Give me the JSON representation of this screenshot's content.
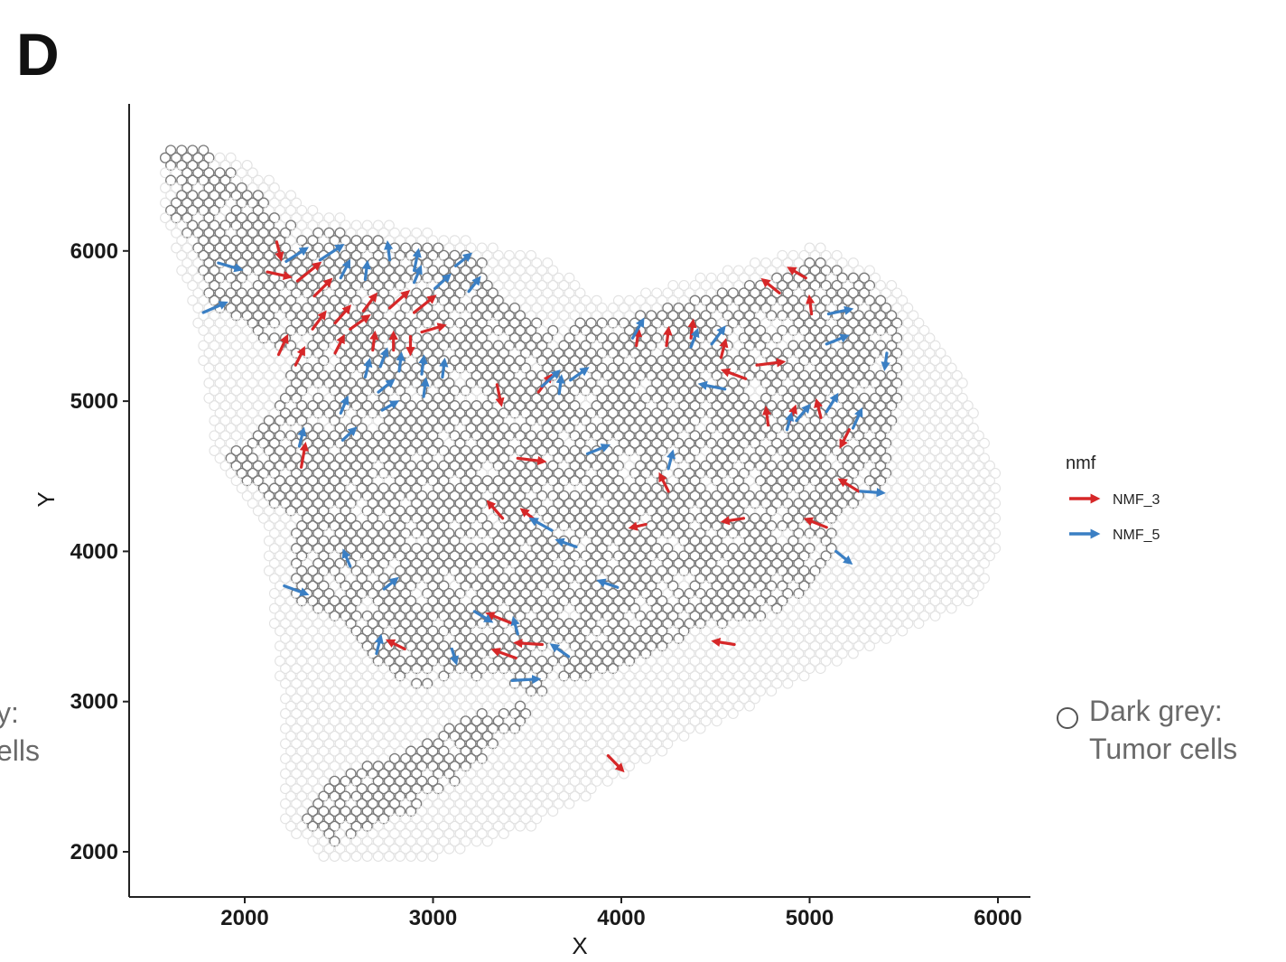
{
  "panel": {
    "letter": "D"
  },
  "chart_data": {
    "type": "scatter",
    "xlabel": "X",
    "ylabel": "Y",
    "xlim": [
      1350,
      6150
    ],
    "ylim": [
      1700,
      6980
    ],
    "x_ticks": [
      2000,
      3000,
      4000,
      5000,
      6000
    ],
    "y_ticks": [
      2000,
      3000,
      4000,
      5000,
      6000
    ],
    "grid": false,
    "legend": {
      "title": "nmf",
      "placement": "right",
      "entries": [
        {
          "name": "NMF_3",
          "color": "#d62728"
        },
        {
          "name": "NMF_5",
          "color": "#3a7fc4"
        }
      ]
    },
    "spot_colors": {
      "dark": "#7a7a7a",
      "light": "#e2e2e2"
    },
    "series": [
      {
        "name": "NMF_3",
        "color": "#d62728",
        "arrows": [
          [
            2170,
            6060,
            2190,
            5960
          ],
          [
            2120,
            5860,
            2230,
            5830
          ],
          [
            2280,
            5800,
            2390,
            5910
          ],
          [
            2370,
            5700,
            2450,
            5800
          ],
          [
            2360,
            5480,
            2420,
            5580
          ],
          [
            2480,
            5520,
            2550,
            5620
          ],
          [
            2560,
            5480,
            2650,
            5560
          ],
          [
            2630,
            5600,
            2690,
            5700
          ],
          [
            2770,
            5620,
            2860,
            5720
          ],
          [
            2900,
            5590,
            3000,
            5690
          ],
          [
            2940,
            5460,
            3050,
            5500
          ],
          [
            2790,
            5340,
            2790,
            5440
          ],
          [
            2880,
            5430,
            2880,
            5330
          ],
          [
            2680,
            5340,
            2690,
            5440
          ],
          [
            2180,
            5310,
            2220,
            5420
          ],
          [
            2270,
            5240,
            2310,
            5340
          ],
          [
            2480,
            5320,
            2520,
            5420
          ],
          [
            2300,
            4560,
            2320,
            4700
          ],
          [
            3340,
            5110,
            3360,
            4990
          ],
          [
            3560,
            5060,
            3620,
            5160
          ],
          [
            3450,
            4620,
            3580,
            4600
          ],
          [
            3370,
            4220,
            3300,
            4320
          ],
          [
            3550,
            4200,
            3480,
            4270
          ],
          [
            3420,
            3520,
            3300,
            3580
          ],
          [
            2850,
            3350,
            2770,
            3400
          ],
          [
            3440,
            3290,
            3330,
            3340
          ],
          [
            3580,
            3380,
            3450,
            3390
          ],
          [
            3930,
            2640,
            4000,
            2550
          ],
          [
            4250,
            4400,
            4210,
            4500
          ],
          [
            4130,
            4180,
            4060,
            4160
          ],
          [
            4080,
            5370,
            4090,
            5460
          ],
          [
            4240,
            5370,
            4250,
            5470
          ],
          [
            4370,
            5420,
            4380,
            5520
          ],
          [
            4530,
            5290,
            4550,
            5390
          ],
          [
            4660,
            5150,
            4550,
            5200
          ],
          [
            4720,
            5240,
            4850,
            5260
          ],
          [
            4650,
            4220,
            4550,
            4200
          ],
          [
            4600,
            3380,
            4500,
            3400
          ],
          [
            4840,
            5720,
            4760,
            5800
          ],
          [
            4980,
            5820,
            4900,
            5880
          ],
          [
            5010,
            5580,
            5000,
            5680
          ],
          [
            4780,
            4840,
            4770,
            4940
          ],
          [
            4890,
            4850,
            4920,
            4950
          ],
          [
            5060,
            4890,
            5040,
            4990
          ],
          [
            5210,
            4810,
            5170,
            4710
          ],
          [
            5260,
            4400,
            5170,
            4470
          ],
          [
            5090,
            4160,
            4990,
            4210
          ]
        ]
      },
      {
        "name": "NMF_5",
        "color": "#3a7fc4",
        "arrows": [
          [
            1860,
            5920,
            1970,
            5880
          ],
          [
            1780,
            5590,
            1890,
            5650
          ],
          [
            2220,
            5930,
            2320,
            6010
          ],
          [
            2400,
            5940,
            2510,
            6030
          ],
          [
            2510,
            5820,
            2550,
            5920
          ],
          [
            2640,
            5810,
            2650,
            5910
          ],
          [
            2770,
            5940,
            2760,
            6040
          ],
          [
            2900,
            5870,
            2920,
            5990
          ],
          [
            2900,
            5790,
            2930,
            5880
          ],
          [
            3010,
            5750,
            3080,
            5830
          ],
          [
            3190,
            5730,
            3240,
            5810
          ],
          [
            3120,
            5900,
            3190,
            5970
          ],
          [
            2720,
            5230,
            2750,
            5330
          ],
          [
            2820,
            5200,
            2830,
            5300
          ],
          [
            2940,
            5180,
            2950,
            5280
          ],
          [
            3050,
            5160,
            3060,
            5260
          ],
          [
            2640,
            5160,
            2660,
            5260
          ],
          [
            2710,
            5060,
            2780,
            5130
          ],
          [
            2730,
            4940,
            2800,
            4990
          ],
          [
            2950,
            5030,
            2960,
            5130
          ],
          [
            2510,
            4920,
            2540,
            5010
          ],
          [
            2520,
            4740,
            2580,
            4810
          ],
          [
            2290,
            4700,
            2310,
            4800
          ],
          [
            3580,
            5100,
            3660,
            5190
          ],
          [
            3730,
            5140,
            3810,
            5210
          ],
          [
            3670,
            5050,
            3680,
            5150
          ],
          [
            3820,
            4650,
            3920,
            4700
          ],
          [
            4250,
            4550,
            4270,
            4650
          ],
          [
            4060,
            5420,
            4110,
            5530
          ],
          [
            4370,
            5360,
            4400,
            5460
          ],
          [
            4480,
            5380,
            4540,
            5480
          ],
          [
            4550,
            5080,
            4430,
            5110
          ],
          [
            3630,
            4140,
            3530,
            4210
          ],
          [
            3760,
            4030,
            3670,
            4070
          ],
          [
            2210,
            3770,
            2320,
            3720
          ],
          [
            2560,
            3900,
            2530,
            3990
          ],
          [
            2740,
            3750,
            2800,
            3810
          ],
          [
            2700,
            3320,
            2720,
            3420
          ],
          [
            3220,
            3600,
            3300,
            3540
          ],
          [
            3450,
            3450,
            3430,
            3540
          ],
          [
            3420,
            3140,
            3550,
            3150
          ],
          [
            3100,
            3350,
            3120,
            3270
          ],
          [
            3720,
            3300,
            3640,
            3370
          ],
          [
            3980,
            3760,
            3890,
            3800
          ],
          [
            4880,
            4810,
            4900,
            4900
          ],
          [
            4930,
            4870,
            4990,
            4960
          ],
          [
            5090,
            4930,
            5140,
            5030
          ],
          [
            5230,
            4820,
            5270,
            4930
          ],
          [
            5100,
            5580,
            5210,
            5610
          ],
          [
            5090,
            5380,
            5190,
            5430
          ],
          [
            5410,
            5320,
            5400,
            5230
          ],
          [
            5270,
            4400,
            5380,
            4390
          ],
          [
            5140,
            4000,
            5210,
            3930
          ]
        ]
      }
    ],
    "notes": {
      "left": "y:\nells",
      "right": "Dark grey:\nTumor cells"
    }
  }
}
